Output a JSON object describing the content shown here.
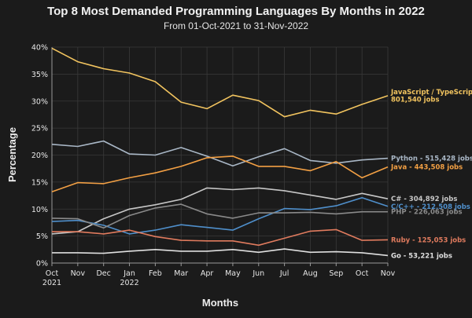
{
  "chart_data": {
    "type": "line",
    "title": "Top 8 Most Demanded Programming Languages By Months in 2022",
    "subtitle": "From 01-Oct-2021 to 31-Nov-2022",
    "xlabel": "Months",
    "ylabel": "Percentage",
    "ylim": [
      0,
      40
    ],
    "y_ticks": [
      0,
      5,
      10,
      15,
      20,
      25,
      30,
      35,
      40
    ],
    "y_tick_suffix": "%",
    "grid": true,
    "categories": [
      "Oct",
      "Nov",
      "Dec",
      "Jan",
      "Feb",
      "Mar",
      "Apr",
      "May",
      "Jun",
      "Jul",
      "Aug",
      "Sep",
      "Oct",
      "Nov"
    ],
    "category_sublabels": [
      "2021",
      "",
      "",
      "2022",
      "",
      "",
      "",
      "",
      "",
      "",
      "",
      "",
      "",
      ""
    ],
    "series": [
      {
        "name": "JavaScript / TypeScript",
        "label_lines": [
          "JavaScript / TypeScript",
          "801,540 jobs"
        ],
        "color": "#f2c45f",
        "values": [
          39.8,
          37.3,
          36.0,
          35.2,
          33.6,
          29.8,
          28.6,
          31.1,
          30.1,
          27.1,
          28.3,
          27.6,
          29.4,
          31.0
        ]
      },
      {
        "name": "Python",
        "label_lines": [
          "Python - 515,428 jobs"
        ],
        "color": "#a9b7c6",
        "values": [
          22.0,
          21.6,
          22.6,
          20.2,
          20.0,
          21.4,
          19.8,
          18.0,
          19.7,
          21.2,
          19.0,
          18.5,
          19.1,
          19.4
        ]
      },
      {
        "name": "Java",
        "label_lines": [
          "Java - 443,508 jobs"
        ],
        "color": "#f3a044",
        "values": [
          13.2,
          14.9,
          14.7,
          15.8,
          16.7,
          17.9,
          19.5,
          19.8,
          17.9,
          17.9,
          17.1,
          18.8,
          15.8,
          17.8
        ]
      },
      {
        "name": "C#",
        "label_lines": [
          "C# - 304,892 jobs"
        ],
        "color": "#c7c7c7",
        "values": [
          5.4,
          5.8,
          8.2,
          10.0,
          10.8,
          11.8,
          13.9,
          13.6,
          13.9,
          13.4,
          12.6,
          11.8,
          12.9,
          11.9
        ]
      },
      {
        "name": "C/C++",
        "label_lines": [
          "C/C++ - 212,508 jobs"
        ],
        "color": "#4f8fcb",
        "values": [
          7.7,
          7.9,
          7.0,
          5.4,
          6.1,
          7.1,
          6.6,
          6.1,
          8.2,
          10.1,
          9.9,
          10.6,
          12.1,
          10.5
        ]
      },
      {
        "name": "PHP",
        "label_lines": [
          "PHP - 226,063 jobs"
        ],
        "color": "#8a8a8a",
        "values": [
          8.3,
          8.2,
          6.5,
          8.8,
          10.2,
          10.9,
          9.1,
          8.3,
          9.3,
          9.3,
          9.4,
          9.1,
          9.5,
          9.5
        ]
      },
      {
        "name": "Ruby",
        "label_lines": [
          "Ruby - 125,053 jobs"
        ],
        "color": "#e07b5e",
        "values": [
          5.8,
          5.8,
          5.4,
          6.1,
          4.9,
          4.2,
          4.1,
          4.1,
          3.3,
          4.6,
          5.9,
          6.2,
          4.2,
          4.3
        ]
      },
      {
        "name": "Go",
        "label_lines": [
          "Go - 53,221 jobs"
        ],
        "color": "#e0e0e0",
        "values": [
          1.9,
          1.9,
          1.8,
          2.2,
          2.5,
          2.2,
          2.2,
          2.5,
          2.0,
          2.6,
          2.0,
          2.1,
          1.9,
          1.4
        ]
      }
    ]
  }
}
